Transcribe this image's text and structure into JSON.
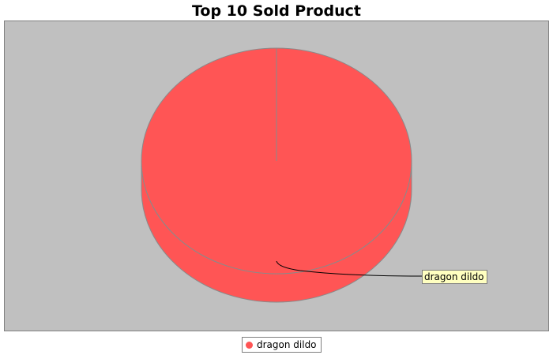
{
  "chart_data": {
    "type": "pie",
    "title": "Top 10 Sold Product",
    "categories": [
      "dragon dildo"
    ],
    "values": [
      1
    ],
    "slice_labels": [
      "dragon dildo"
    ],
    "legend": [
      "dragon dildo"
    ],
    "legend_position": "bottom",
    "three_d": true,
    "colors": {
      "slice": "#ff5555",
      "slice_side": "#dd4848",
      "plot_background": "#c0c0c0",
      "label_background": "#ffffc0"
    }
  }
}
